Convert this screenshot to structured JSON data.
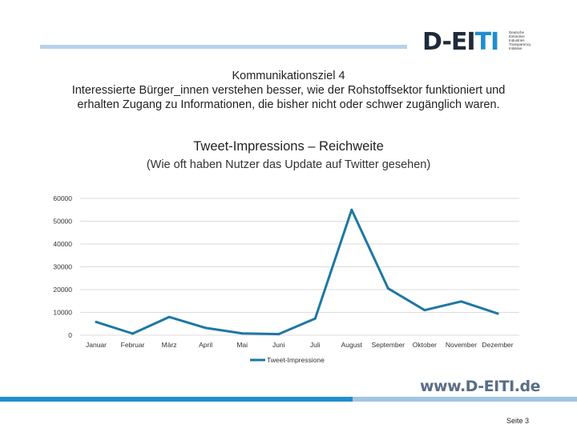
{
  "header": {
    "logo_mark": "D-EITI",
    "logo_small": [
      "Deutsche",
      "Extractive",
      "Industries",
      "Transparency",
      "Initiative"
    ]
  },
  "page_title_lines": [
    "Kommunikationsziel 4",
    "Interessierte Bürger_innen verstehen besser, wie der Rohstoffsektor funktioniert und",
    "erhalten Zugang zu Informationen, die bisher nicht oder schwer zugänglich waren."
  ],
  "chart_data": {
    "type": "line",
    "title": "Tweet-Impressions – Reichweite",
    "subtitle": "(Wie oft haben Nutzer das Update auf Twitter gesehen)",
    "categories": [
      "Januar",
      "Februar",
      "März",
      "April",
      "Mai",
      "Juni",
      "Juli",
      "August",
      "September",
      "Oktober",
      "November",
      "Dezember"
    ],
    "series": [
      {
        "name": "Tweet-Impressione",
        "values": [
          5800,
          700,
          8000,
          3200,
          800,
          500,
          7300,
          55000,
          20500,
          11000,
          14800,
          9500
        ]
      }
    ],
    "yticks": [
      0,
      10000,
      20000,
      30000,
      40000,
      50000,
      60000
    ],
    "ylim": [
      0,
      60000
    ],
    "grid": true,
    "legend_position": "bottom",
    "color": "#1f77a4"
  },
  "footer": {
    "website": "www.D-EITI.de",
    "page_number": "Seite 3"
  }
}
